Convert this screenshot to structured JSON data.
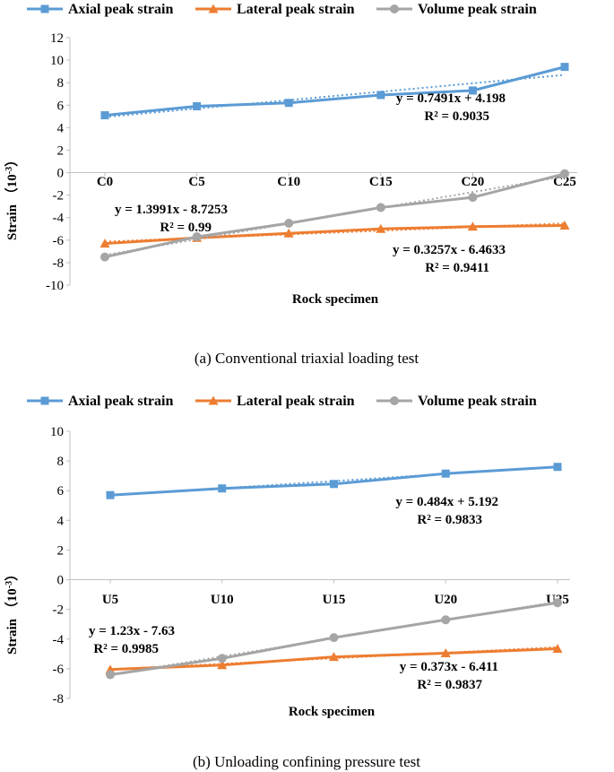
{
  "chart_data": [
    {
      "type": "line",
      "caption": "(a) Conventional triaxial loading test",
      "xlabel": "Rock specimen",
      "ylabel": "Strain",
      "ylabel_unit": "（10",
      "ylabel_exp": "-3",
      "ylabel_close": "）",
      "categories": [
        "C0",
        "C5",
        "C10",
        "C15",
        "C20",
        "C25"
      ],
      "ylim": [
        -10,
        12
      ],
      "yticks": [
        -10,
        -8,
        -6,
        -4,
        -2,
        0,
        2,
        4,
        6,
        8,
        10,
        12
      ],
      "series": [
        {
          "name": "Axial peak strain",
          "color": "#5b9bd5",
          "marker": "square",
          "values": [
            5.1,
            5.9,
            6.2,
            6.9,
            7.3,
            9.4
          ],
          "trend": {
            "slope": 0.7491,
            "intercept": 4.198
          },
          "equation": "y = 0.7491x + 4.198",
          "r2": "R² = 0.9035"
        },
        {
          "name": "Lateral peak strain",
          "color": "#ed7d31",
          "marker": "triangle",
          "values": [
            -6.3,
            -5.8,
            -5.4,
            -5.0,
            -4.8,
            -4.7
          ],
          "trend": {
            "slope": 0.3257,
            "intercept": -6.4633
          },
          "equation": "y = 0.3257x - 6.4633",
          "r2": "R² = 0.9411"
        },
        {
          "name": "Volume peak strain",
          "color": "#a5a5a5",
          "marker": "circle",
          "values": [
            -7.5,
            -5.7,
            -4.5,
            -3.1,
            -2.2,
            -0.1
          ],
          "trend": {
            "slope": 1.3991,
            "intercept": -8.7253
          },
          "equation": "y = 1.3991x - 8.7253",
          "r2": "R² = 0.99"
        }
      ]
    },
    {
      "type": "line",
      "caption": "(b) Unloading confining pressure test",
      "xlabel": "Rock specimen",
      "ylabel": "Strain",
      "ylabel_unit": "（10",
      "ylabel_exp": "-3",
      "ylabel_close": "）",
      "categories": [
        "U5",
        "U10",
        "U15",
        "U20",
        "U25"
      ],
      "ylim": [
        -8,
        10
      ],
      "yticks": [
        -8,
        -6,
        -4,
        -2,
        0,
        2,
        4,
        6,
        8,
        10
      ],
      "series": [
        {
          "name": "Axial peak strain",
          "color": "#5b9bd5",
          "marker": "square",
          "values": [
            5.7,
            6.15,
            6.45,
            7.15,
            7.6
          ],
          "trend": {
            "slope": 0.484,
            "intercept": 5.192
          },
          "equation": "y = 0.484x + 5.192",
          "r2": "R² = 0.9833"
        },
        {
          "name": "Lateral peak strain",
          "color": "#ed7d31",
          "marker": "triangle",
          "values": [
            -6.05,
            -5.75,
            -5.2,
            -4.95,
            -4.65
          ],
          "trend": {
            "slope": 0.373,
            "intercept": -6.411
          },
          "equation": "y = 0.373x - 6.411",
          "r2": "R² = 0.9837"
        },
        {
          "name": "Volume peak strain",
          "color": "#a5a5a5",
          "marker": "circle",
          "values": [
            -6.4,
            -5.3,
            -3.9,
            -2.7,
            -1.55
          ],
          "trend": {
            "slope": 1.23,
            "intercept": -7.63
          },
          "equation": "y = 1.23x - 7.63",
          "r2": "R² = 0.9985"
        }
      ]
    }
  ]
}
